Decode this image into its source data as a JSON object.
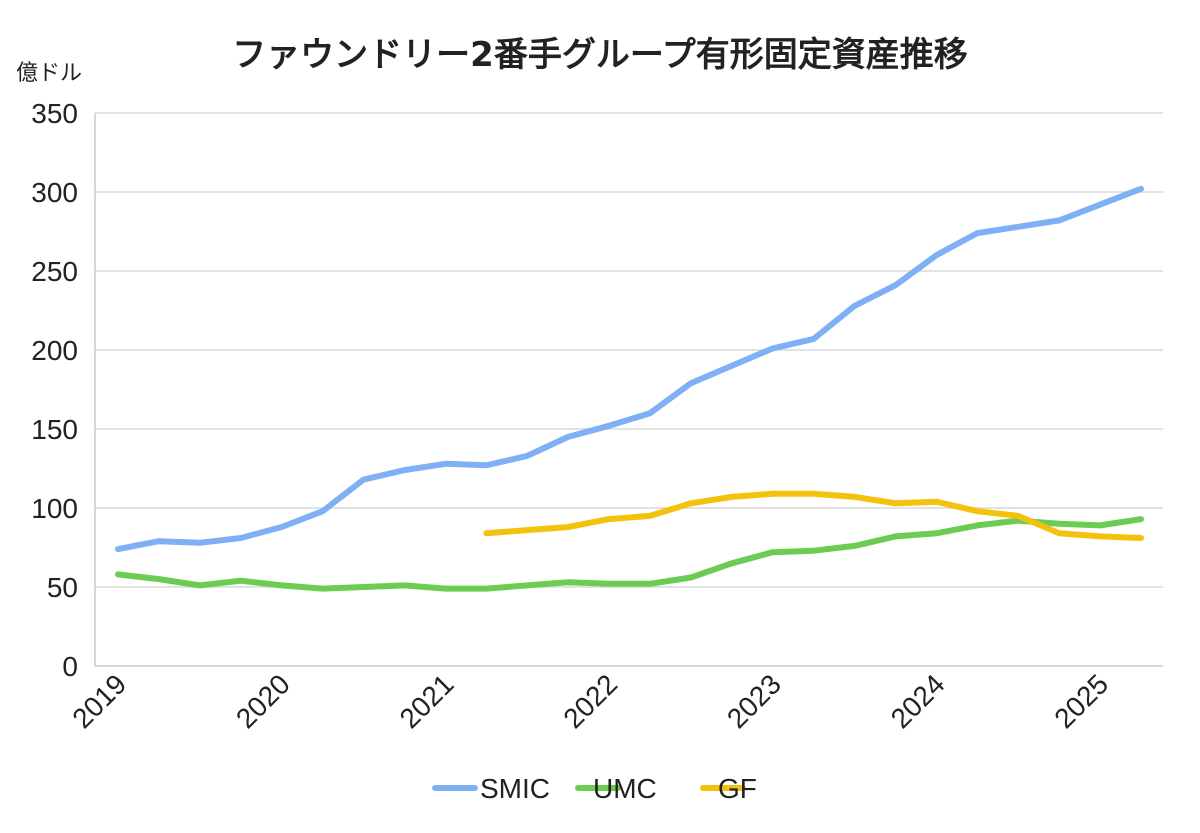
{
  "chart_data": {
    "type": "line",
    "title": "ファウンドリー2番手グループ有形固定資産推移",
    "ylabel": "億ドル",
    "xlabel": "",
    "ylim": [
      0,
      350
    ],
    "yticks": [
      0,
      50,
      100,
      150,
      200,
      250,
      300,
      350
    ],
    "xlim": [
      0,
      25
    ],
    "x_tick_labels": [
      {
        "label": "2019",
        "x": 0
      },
      {
        "label": "2020",
        "x": 4
      },
      {
        "label": "2021",
        "x": 8
      },
      {
        "label": "2022",
        "x": 12
      },
      {
        "label": "2023",
        "x": 16
      },
      {
        "label": "2024",
        "x": 20
      },
      {
        "label": "2025",
        "x": 24
      }
    ],
    "grid": true,
    "legend_position": "bottom",
    "series": [
      {
        "name": "SMIC",
        "color": "#7FB0F5",
        "x": [
          0,
          1,
          2,
          3,
          4,
          5,
          6,
          7,
          8,
          9,
          10,
          11,
          12,
          13,
          14,
          15,
          16,
          17,
          18,
          19,
          20,
          21,
          22,
          23,
          24,
          25
        ],
        "values": [
          74,
          79,
          78,
          81,
          88,
          98,
          118,
          124,
          128,
          127,
          133,
          145,
          152,
          160,
          179,
          190,
          201,
          207,
          228,
          241,
          260,
          274,
          278,
          282,
          292,
          302
        ]
      },
      {
        "name": "UMC",
        "color": "#6CCB52",
        "x": [
          0,
          1,
          2,
          3,
          4,
          5,
          6,
          7,
          8,
          9,
          10,
          11,
          12,
          13,
          14,
          15,
          16,
          17,
          18,
          19,
          20,
          21,
          22,
          23,
          24,
          25
        ],
        "values": [
          58,
          55,
          51,
          54,
          51,
          49,
          50,
          51,
          49,
          49,
          51,
          53,
          52,
          52,
          56,
          65,
          72,
          73,
          76,
          82,
          84,
          89,
          92,
          90,
          89,
          93
        ]
      },
      {
        "name": "GF",
        "color": "#F4C20D",
        "x": [
          9,
          10,
          11,
          12,
          13,
          14,
          15,
          16,
          17,
          18,
          19,
          20,
          21,
          22,
          23,
          24,
          25
        ],
        "values": [
          84,
          86,
          88,
          93,
          95,
          103,
          107,
          109,
          109,
          107,
          103,
          104,
          98,
          95,
          84,
          82,
          81
        ]
      }
    ]
  }
}
